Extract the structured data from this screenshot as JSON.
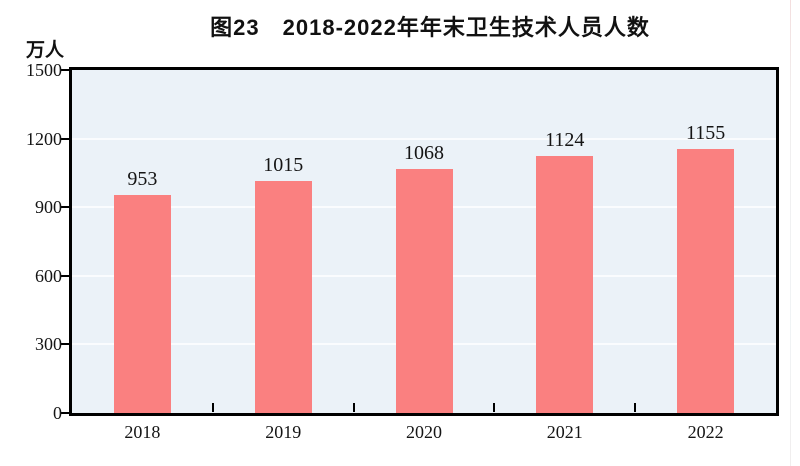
{
  "chart_data": {
    "type": "bar",
    "title": "图23　2018-2022年年末卫生技术人员人数",
    "categories": [
      "2018",
      "2019",
      "2020",
      "2021",
      "2022"
    ],
    "values": [
      953,
      1015,
      1068,
      1124,
      1155
    ],
    "xlabel": "",
    "ylabel": "万人",
    "ylim": [
      0,
      1500
    ],
    "yticks": [
      0,
      300,
      600,
      900,
      1200,
      1500
    ],
    "grid": "horizontal gridlines at each 300 step, light on pale-blue panel",
    "legend": "none",
    "data_labels": "above each bar",
    "colors": {
      "bar_fill": "#FA8080",
      "plot_background": "#EBF2F8",
      "gridline": "#FAFCFE",
      "axis_frame": "#000000",
      "text": "#151515"
    }
  }
}
